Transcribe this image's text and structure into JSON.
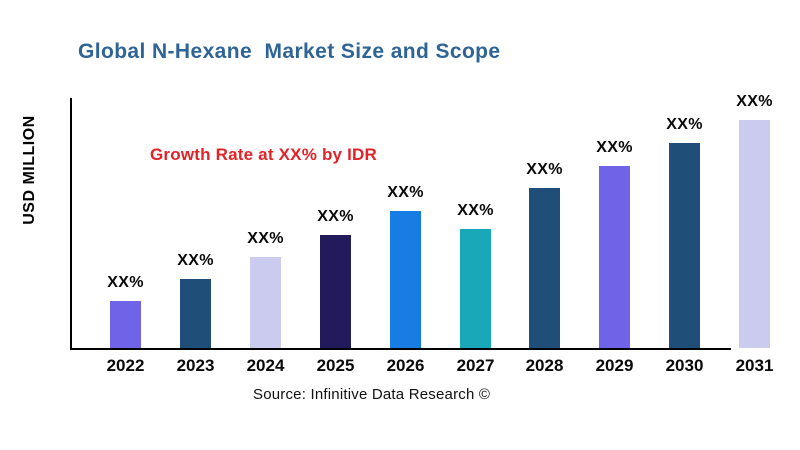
{
  "page": {
    "title": "Global N-Hexane  Market Size and Scope",
    "annotation": "Growth Rate at XX% by IDR",
    "y_axis_label": "USD MILLION",
    "source": "Source: Infinitive Data Research ©"
  },
  "colors": {
    "title_text": "#2e6496",
    "annotation_text": "#e32227",
    "axis": "#000000",
    "bar_label_text": "#0a0a0a"
  },
  "chart_data": {
    "type": "bar",
    "title": "Global N-Hexane  Market Size and Scope",
    "xlabel": "",
    "ylabel": "USD MILLION",
    "categories": [
      "2022",
      "2023",
      "2024",
      "2025",
      "2026",
      "2027",
      "2028",
      "2029",
      "2030",
      "2031"
    ],
    "values_pct_of_plot_height": [
      18.7,
      27.4,
      36.1,
      44.8,
      54.4,
      47.2,
      63.5,
      72.2,
      81.3,
      90.5
    ],
    "bar_value_labels": [
      "XX%",
      "XX%",
      "XX%",
      "XX%",
      "XX%",
      "XX%",
      "XX%",
      "XX%",
      "XX%",
      "XX%"
    ],
    "bar_colors": [
      "#6f63e8",
      "#1f4e79",
      "#cbcaef",
      "#221a5a",
      "#187de2",
      "#18a8b8",
      "#1f4e79",
      "#6f63e8",
      "#1f4e79",
      "#cbcaef"
    ],
    "annotation": "Growth Rate at XX% by IDR",
    "legend": "none",
    "grid": false,
    "ylim": [
      0,
      100
    ],
    "source": "Source: Infinitive Data Research ©"
  }
}
